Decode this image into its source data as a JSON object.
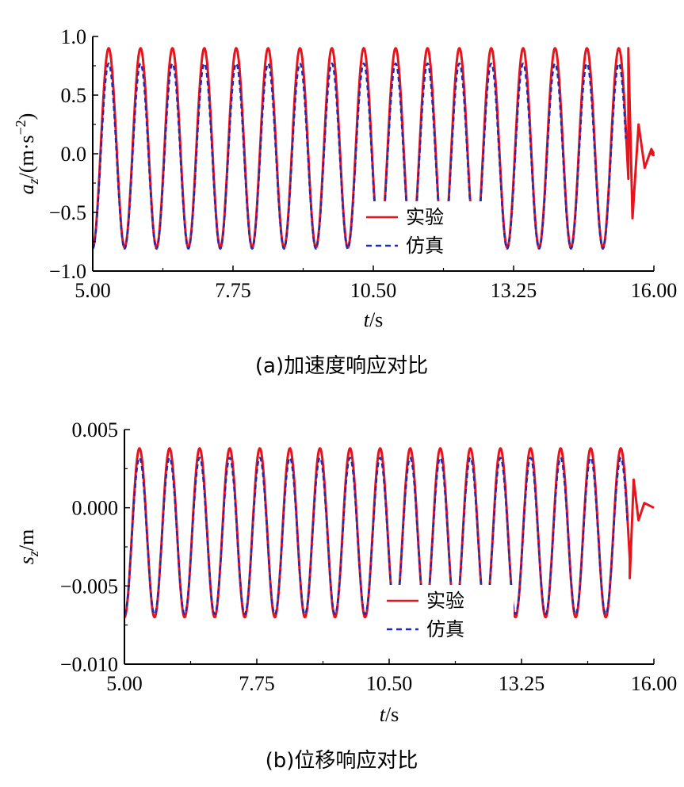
{
  "chart_data": [
    {
      "type": "line",
      "caption": "(a)加速度响应对比",
      "xlabel_var": "t",
      "xlabel_unit": "/s",
      "ylabel_var": "a",
      "ylabel_sub": "z",
      "ylabel_unit": "/(m·s",
      "ylabel_exp": "−2",
      "ylabel_close": ")",
      "xlim": [
        5.0,
        16.0
      ],
      "ylim": [
        -1.0,
        1.0
      ],
      "xticks": [
        5.0,
        7.75,
        10.5,
        13.25,
        16.0
      ],
      "xtick_labels": [
        "5.00",
        "7.75",
        "10.50",
        "13.25",
        "16.00"
      ],
      "yticks": [
        1.0,
        0.5,
        0.0,
        -0.5,
        -1.0
      ],
      "ytick_labels": [
        "1.0",
        "0.5",
        "0.0",
        "−0.5",
        "−1.0"
      ],
      "legend_position": "lower-center",
      "series": [
        {
          "name": "实验",
          "color": "#e8141c",
          "style": "solid",
          "waveform": {
            "freq_hz": 1.6,
            "amp": 0.85,
            "offset": 0.05,
            "start": 5.0,
            "end": 15.5,
            "ringdown": [
              [
                15.5,
                0.9
              ],
              [
                15.58,
                -0.55
              ],
              [
                15.7,
                0.25
              ],
              [
                15.82,
                -0.12
              ],
              [
                15.95,
                0.04
              ],
              [
                16.0,
                0.0
              ]
            ],
            "noise_end": 16.0
          }
        },
        {
          "name": "仿真",
          "color": "#1e2ab8",
          "style": "dashed",
          "waveform": {
            "freq_hz": 1.6,
            "amp": 0.79,
            "offset": -0.02,
            "start": 5.0,
            "end": 15.45
          }
        }
      ]
    },
    {
      "type": "line",
      "caption": "(b)位移响应对比",
      "xlabel_var": "t",
      "xlabel_unit": "/s",
      "ylabel_var": "s",
      "ylabel_sub": "z",
      "ylabel_unit": "/m",
      "ylabel_exp": "",
      "ylabel_close": "",
      "xlim": [
        5.0,
        16.0
      ],
      "ylim": [
        -0.01,
        0.005
      ],
      "xticks": [
        5.0,
        7.75,
        10.5,
        13.25,
        16.0
      ],
      "xtick_labels": [
        "5.00",
        "7.75",
        "10.50",
        "13.25",
        "16.00"
      ],
      "yticks": [
        0.005,
        0.0,
        -0.005,
        -0.01
      ],
      "ytick_labels": [
        "0.005",
        "0.000",
        "−0.005",
        "−0.010"
      ],
      "legend_position": "lower-center",
      "series": [
        {
          "name": "实验",
          "color": "#e8141c",
          "style": "solid",
          "waveform": {
            "freq_hz": 1.6,
            "amp": 0.0054,
            "offset": -0.0016,
            "start": 5.0,
            "end": 15.5,
            "ringdown": [
              [
                15.5,
                -0.0045
              ],
              [
                15.58,
                0.0018
              ],
              [
                15.68,
                -0.0008
              ],
              [
                15.8,
                0.0003
              ],
              [
                16.0,
                0.0
              ]
            ],
            "noise_end": 15.9
          }
        },
        {
          "name": "仿真",
          "color": "#1e2ab8",
          "style": "dashed",
          "waveform": {
            "freq_hz": 1.6,
            "amp": 0.005,
            "offset": -0.0018,
            "start": 5.0,
            "end": 15.45
          }
        }
      ]
    }
  ]
}
